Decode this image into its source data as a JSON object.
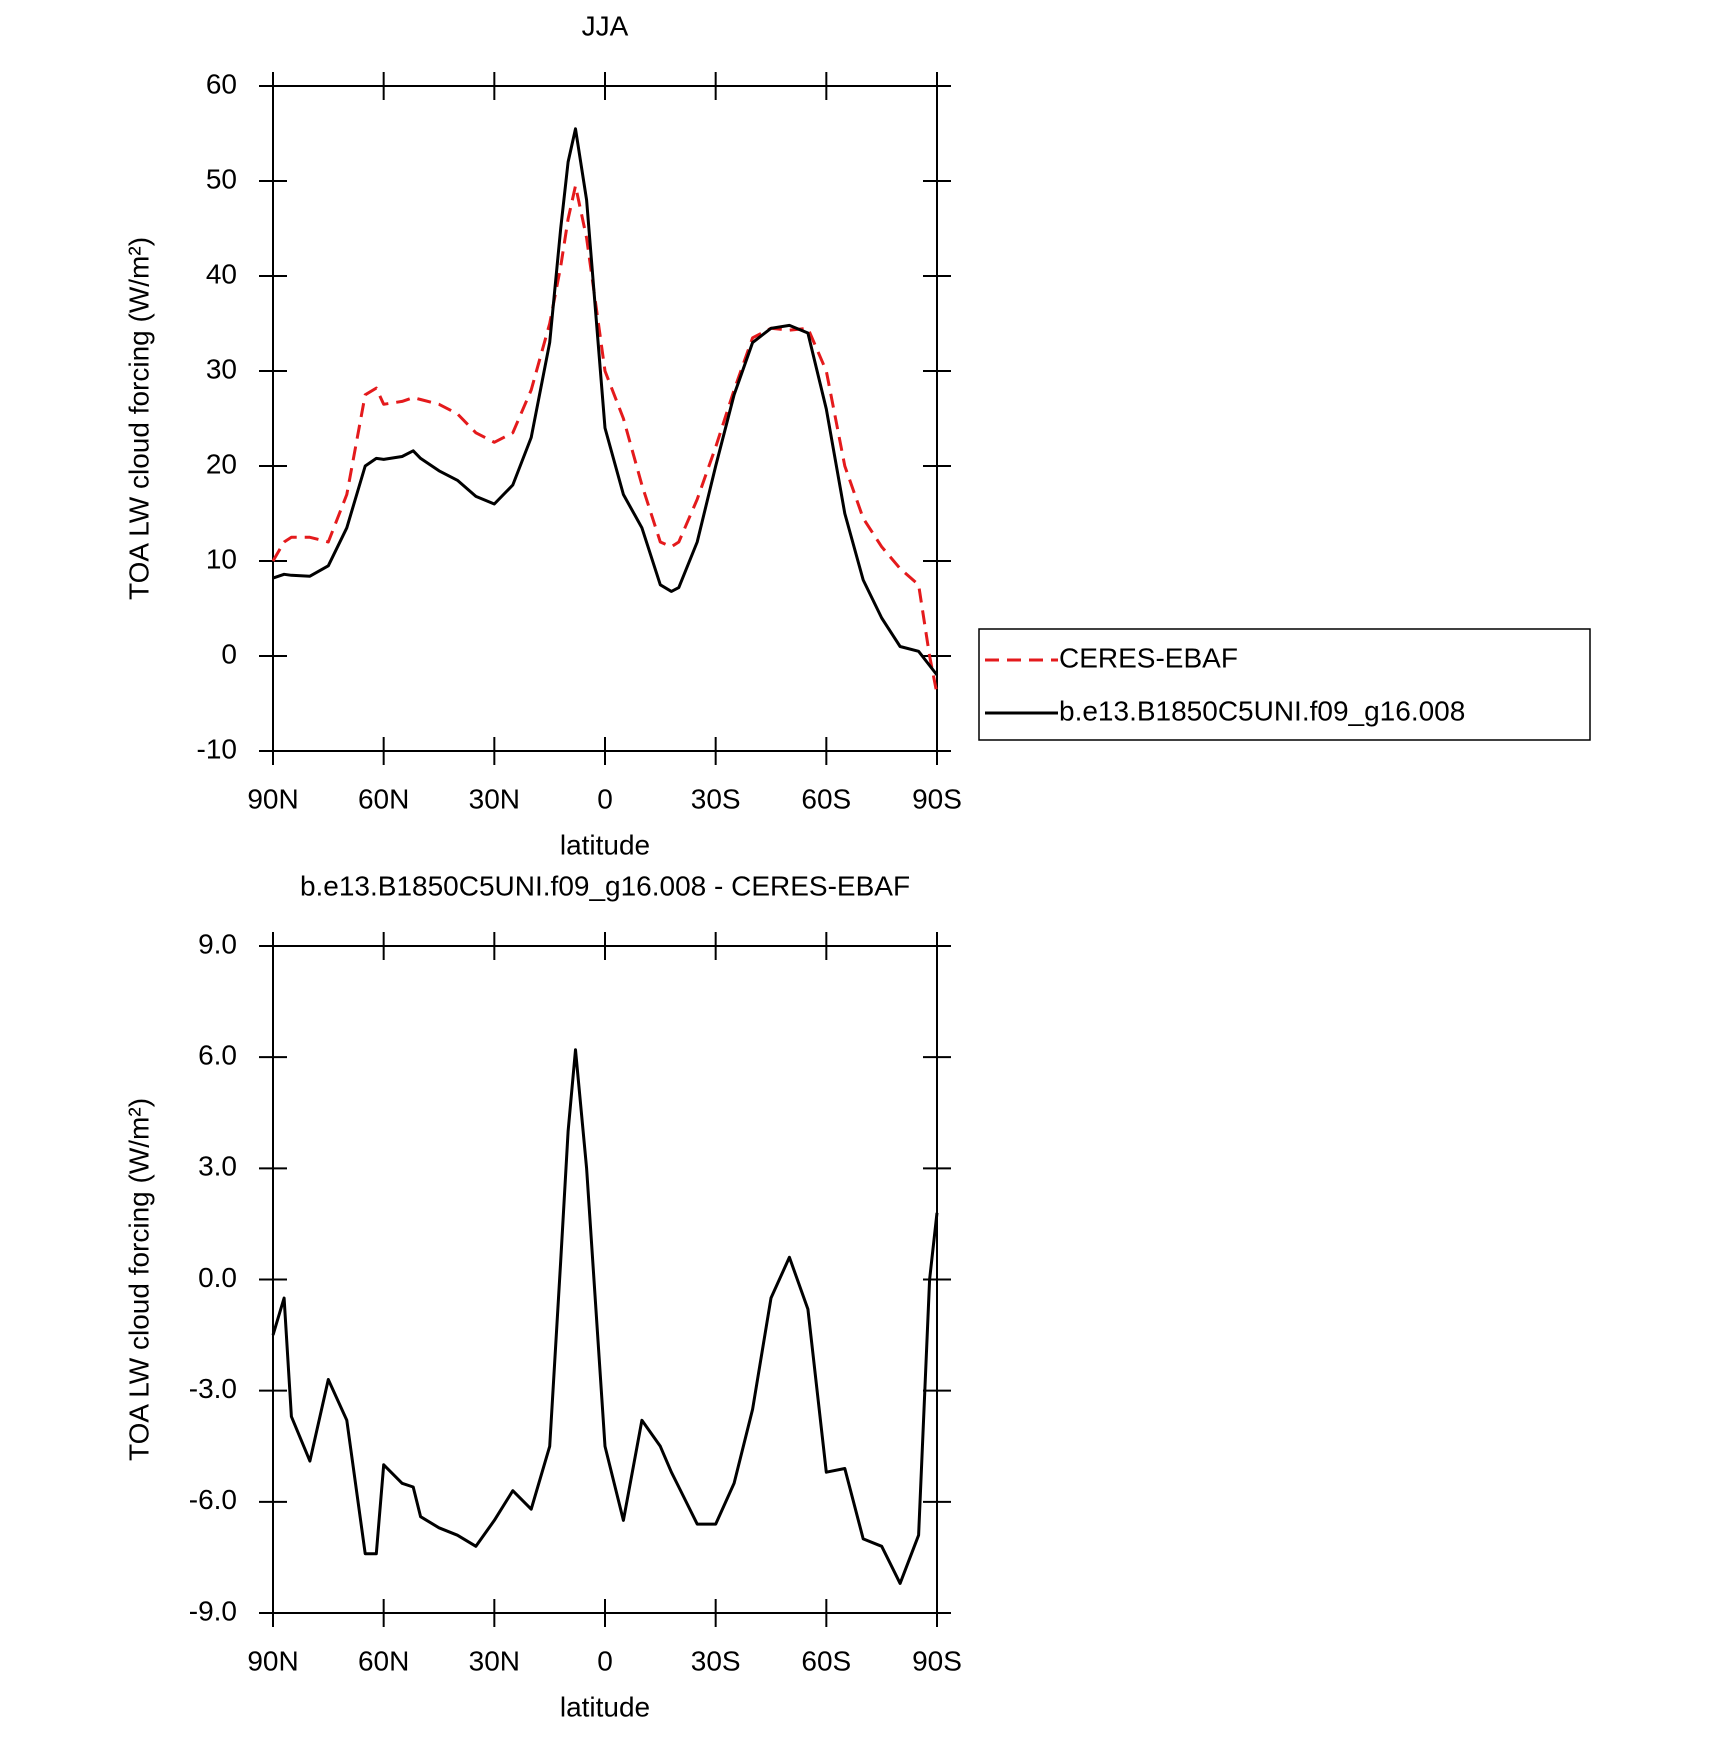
{
  "chart_data": [
    {
      "type": "line",
      "title": "JJA",
      "xlabel": "latitude",
      "ylabel": "TOA LW cloud forcing (W/m²)",
      "x": [
        90,
        87,
        85,
        80,
        75,
        70,
        65,
        62,
        60,
        55,
        52,
        50,
        45,
        40,
        35,
        30,
        25,
        20,
        15,
        12,
        10,
        8,
        5,
        0,
        -5,
        -10,
        -15,
        -18,
        -20,
        -25,
        -30,
        -35,
        -40,
        -45,
        -50,
        -55,
        -60,
        -65,
        -70,
        -75,
        -80,
        -85,
        -88,
        -90
      ],
      "series": [
        {
          "name": "CERES-EBAF",
          "color": "#e41a1c",
          "style": "dashed",
          "values": [
            10,
            12,
            12.5,
            12.5,
            12,
            17,
            27.5,
            28.2,
            26.5,
            26.8,
            27.2,
            27,
            26.5,
            25.5,
            23.5,
            22.5,
            23.5,
            28,
            35,
            41,
            46,
            49.5,
            44,
            30,
            25,
            18,
            12,
            11.5,
            12,
            16.5,
            22,
            28,
            33.5,
            34.5,
            34.3,
            34.5,
            30,
            20,
            14.5,
            11.5,
            9.2,
            7.5,
            0,
            -4
          ]
        },
        {
          "name": "b.e13.B1850C5UNI.f09_g16.008",
          "color": "#000000",
          "style": "solid",
          "values": [
            8.2,
            8.6,
            8.5,
            8.4,
            9.5,
            13.5,
            20,
            20.8,
            20.7,
            21,
            21.6,
            20.8,
            19.5,
            18.5,
            16.8,
            16,
            18,
            23,
            33,
            45,
            52,
            55.5,
            48,
            24,
            17,
            13.5,
            7.5,
            6.8,
            7.2,
            12,
            20,
            27.5,
            33,
            34.5,
            34.8,
            34,
            26,
            15,
            8,
            4,
            1,
            0.5,
            -1,
            -2
          ]
        }
      ],
      "xlim": [
        90,
        -90
      ],
      "xticks": [
        {
          "value": 90,
          "label": "90N"
        },
        {
          "value": 60,
          "label": "60N"
        },
        {
          "value": 30,
          "label": "30N"
        },
        0,
        {
          "value": -30,
          "label": "30S"
        },
        {
          "value": -60,
          "label": "60S"
        },
        {
          "value": -90,
          "label": "90S"
        }
      ],
      "ylim": [
        -10,
        60
      ],
      "yticks": [
        -10,
        0,
        10,
        20,
        30,
        40,
        50,
        60
      ],
      "legend": "right"
    },
    {
      "type": "line",
      "title": "b.e13.B1850C5UNI.f09_g16.008 - CERES-EBAF",
      "xlabel": "latitude",
      "ylabel": "TOA LW cloud forcing (W/m²)",
      "x": [
        90,
        87,
        85,
        80,
        75,
        70,
        65,
        62,
        60,
        55,
        52,
        50,
        45,
        40,
        35,
        30,
        25,
        20,
        15,
        12,
        10,
        8,
        5,
        0,
        -5,
        -10,
        -15,
        -18,
        -20,
        -25,
        -30,
        -35,
        -40,
        -45,
        -50,
        -55,
        -60,
        -65,
        -70,
        -75,
        -80,
        -85,
        -88,
        -90
      ],
      "series": [
        {
          "color": "#000000",
          "style": "solid",
          "values": [
            -1.5,
            -0.5,
            -3.7,
            -4.9,
            -2.7,
            -3.8,
            -7.4,
            -7.4,
            -5,
            -5.5,
            -5.6,
            -6.4,
            -6.7,
            -6.9,
            -7.2,
            -6.5,
            -5.7,
            -6.2,
            -4.5,
            0.5,
            4,
            6.2,
            3,
            -4.5,
            -6.5,
            -3.8,
            -4.5,
            -5.2,
            -5.6,
            -6.6,
            -6.6,
            -5.5,
            -3.5,
            -0.5,
            0.6,
            -0.8,
            -5.2,
            -5.1,
            -7,
            -7.2,
            -8.2,
            -6.9,
            0,
            1.8
          ]
        }
      ],
      "xlim": [
        90,
        -90
      ],
      "xticks": [
        {
          "value": 90,
          "label": "90N"
        },
        {
          "value": 60,
          "label": "60N"
        },
        {
          "value": 30,
          "label": "30N"
        },
        0,
        {
          "value": -30,
          "label": "30S"
        },
        {
          "value": -60,
          "label": "60S"
        },
        {
          "value": -90,
          "label": "90S"
        }
      ],
      "ylim": [
        -9,
        9
      ],
      "yticks": [
        {
          "value": -9,
          "label": "-9.0"
        },
        {
          "value": -6,
          "label": "-6.0"
        },
        {
          "value": -3,
          "label": "-3.0"
        },
        {
          "value": 0,
          "label": "0.0"
        },
        {
          "value": 3,
          "label": "3.0"
        },
        {
          "value": 6,
          "label": "6.0"
        },
        {
          "value": 9,
          "label": "9.0"
        }
      ]
    }
  ]
}
